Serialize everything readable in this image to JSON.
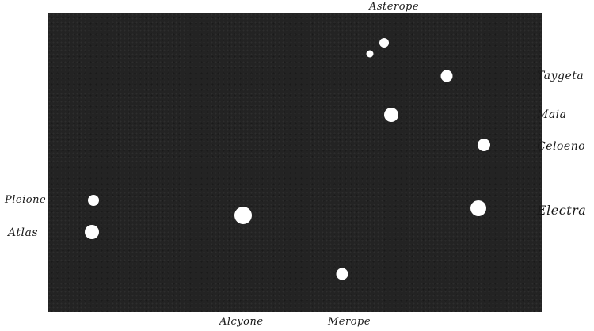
{
  "diagram": {
    "background_color": "#232323",
    "star_color": "#ffffff",
    "stars": [
      {
        "id": "asterope-1",
        "label": "Asterope"
      },
      {
        "id": "asterope-2",
        "label": ""
      },
      {
        "id": "taygeta",
        "label": "Taygeta"
      },
      {
        "id": "maia",
        "label": "Maia"
      },
      {
        "id": "celaeno",
        "label": "Celoeno"
      },
      {
        "id": "electra",
        "label": "Electra"
      },
      {
        "id": "pleione",
        "label": "Pleione"
      },
      {
        "id": "atlas",
        "label": "Atlas"
      },
      {
        "id": "alcyone",
        "label": "Alcyone"
      },
      {
        "id": "merope",
        "label": "Merope"
      }
    ]
  }
}
